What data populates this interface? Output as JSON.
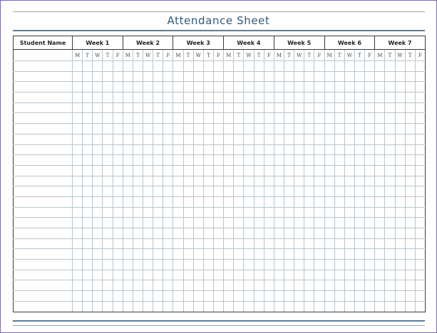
{
  "title": "Attendance Sheet",
  "columns": {
    "student_name_header": "Student Name",
    "weeks": [
      "Week 1",
      "Week 2",
      "Week 3",
      "Week 4",
      "Week 5",
      "Week 6",
      "Week 7"
    ],
    "days": [
      "M",
      "T",
      "W",
      "T",
      "F"
    ]
  },
  "rows": 24,
  "colors": {
    "title": "#2f5a7b",
    "rule": "#5b7f95",
    "grid_line": "#b8c5ce",
    "frame": "#7b6aa8"
  }
}
